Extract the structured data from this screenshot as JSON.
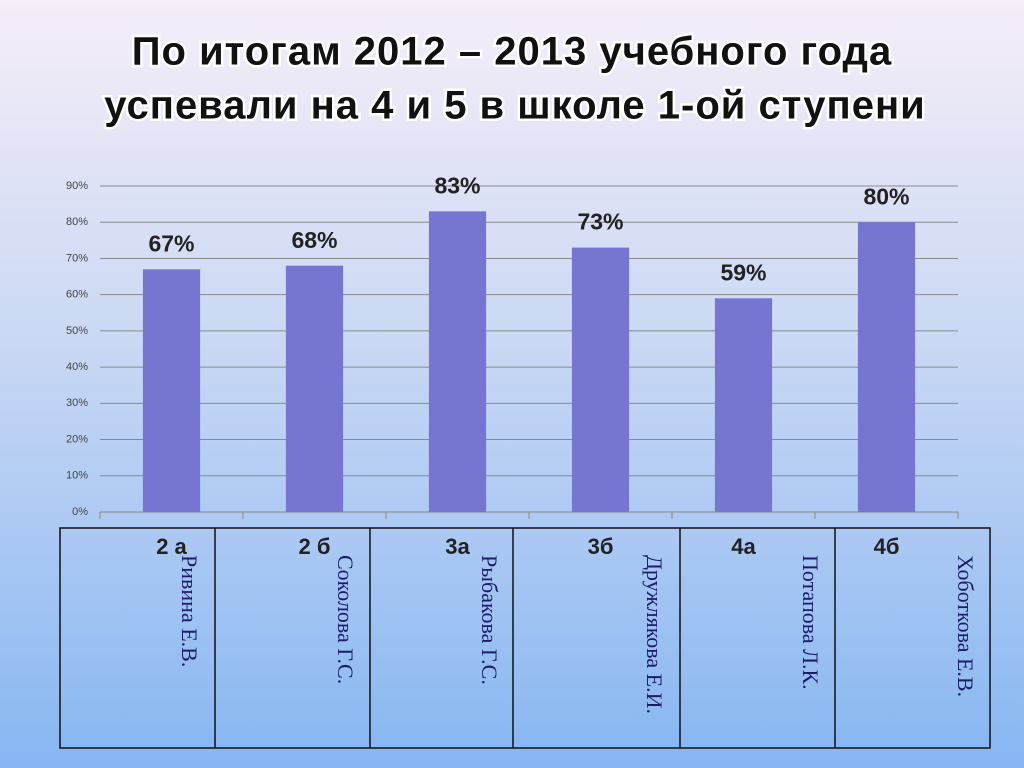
{
  "chart_data": {
    "type": "bar",
    "title": [
      "По итогам 2012 – 2013 учебного года",
      "успевали на 4 и 5 в школе 1-ой ступени"
    ],
    "categories": [
      "2 а",
      "2 б",
      "3а",
      "3б",
      "4а",
      "4б"
    ],
    "teachers": [
      "Ривина Е.В.",
      "Соколова Г.С.",
      "Рыбакова Г.С.",
      "Дружлякова Е.И.",
      "Потапова  Л.К.",
      "Хоботкова Е.В."
    ],
    "values": [
      67,
      68,
      83,
      73,
      59,
      80
    ],
    "value_labels": [
      "67%",
      "68%",
      "83%",
      "73%",
      "59%",
      "80%"
    ],
    "color": "#7676d2",
    "ylim": [
      0,
      90
    ],
    "yticks": [
      {
        "value": 0,
        "label": "0%"
      },
      {
        "value": 10,
        "label": "10%"
      },
      {
        "value": 20,
        "label": "20%"
      },
      {
        "value": 30,
        "label": "30%"
      },
      {
        "value": 40,
        "label": "40%"
      },
      {
        "value": 50,
        "label": "50%"
      },
      {
        "value": 60,
        "label": "60%"
      },
      {
        "value": 70,
        "label": "70%"
      },
      {
        "value": 80,
        "label": "80%"
      },
      {
        "value": 90,
        "label": "90%"
      }
    ],
    "grid": true
  }
}
